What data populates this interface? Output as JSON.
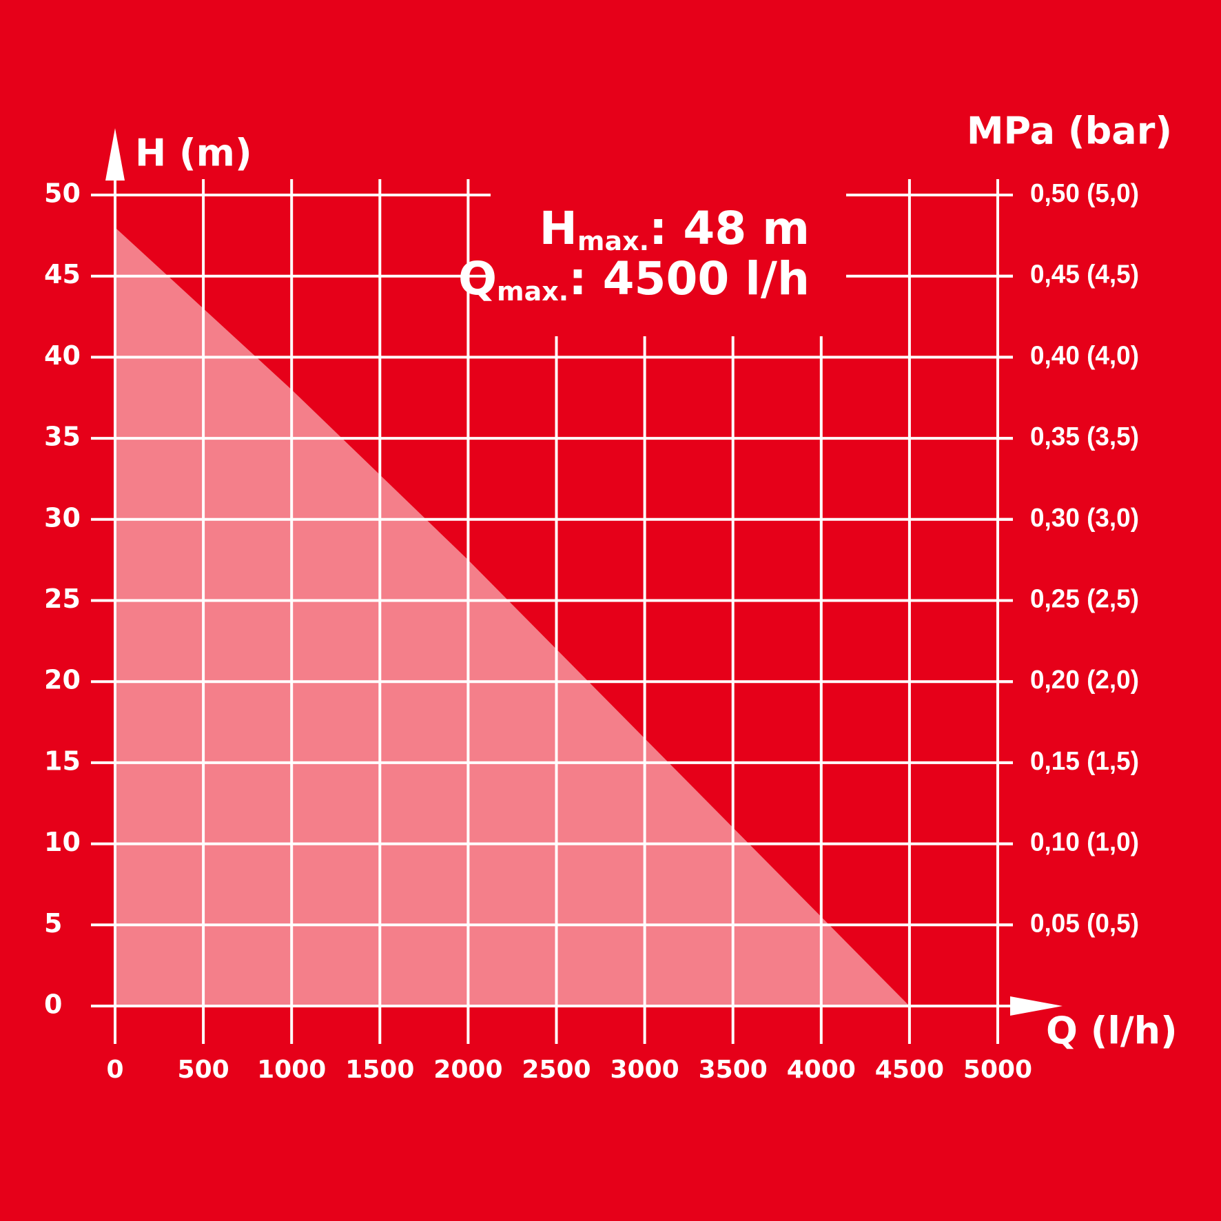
{
  "chart_data": {
    "type": "area",
    "x": [
      0,
      1000,
      2000,
      3000,
      4000,
      4500
    ],
    "values": [
      48,
      38,
      27.5,
      16.5,
      5.5,
      0
    ],
    "color": "#f47f8a",
    "xlim": [
      0,
      5000
    ],
    "xticks": [
      0,
      500,
      1000,
      1500,
      2000,
      2500,
      3000,
      3500,
      4000,
      4500,
      5000
    ],
    "ylim": [
      0,
      50
    ],
    "yticks": [
      0,
      5,
      10,
      15,
      20,
      25,
      30,
      35,
      40,
      45,
      50
    ],
    "y2lim": [
      0,
      0.5
    ],
    "y2ticks": [
      {
        "value": 0.05,
        "label": "0,05 (0,5)"
      },
      {
        "value": 0.1,
        "label": "0,10 (1,0)"
      },
      {
        "value": 0.15,
        "label": "0,15 (1,5)"
      },
      {
        "value": 0.2,
        "label": "0,20 (2,0)"
      },
      {
        "value": 0.25,
        "label": "0,25 (2,5)"
      },
      {
        "value": 0.3,
        "label": "0,30 (3,0)"
      },
      {
        "value": 0.35,
        "label": "0,35 (3,5)"
      },
      {
        "value": 0.4,
        "label": "0,40 (4,0)"
      },
      {
        "value": 0.45,
        "label": "0,45 (4,5)"
      },
      {
        "value": 0.5,
        "label": "0,50 (5,0)"
      }
    ],
    "grid": true,
    "ylabel": "H (m)",
    "xlabel": "Q (l/h)",
    "y2label": "MPa (bar)",
    "annotations": [
      {
        "symbol": "H",
        "subscript": "max.",
        "text": ": 48 m"
      },
      {
        "symbol": "Q",
        "subscript": "max.",
        "text": ": 4500 l/h"
      }
    ]
  }
}
